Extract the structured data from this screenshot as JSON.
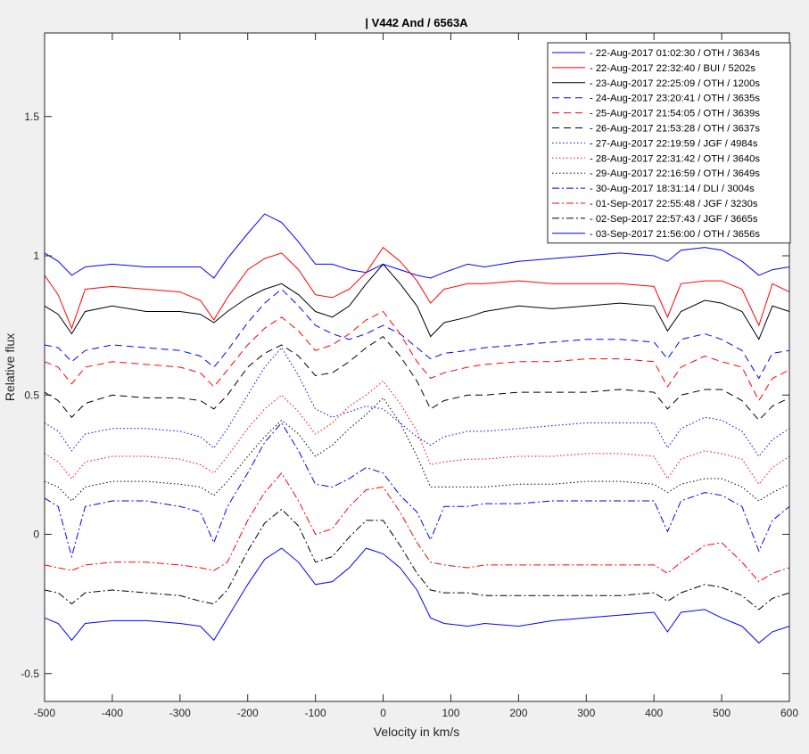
{
  "chart_data": {
    "type": "line",
    "title": "| V442 And / 6563A",
    "xlabel": "Velocity in km/s",
    "ylabel": "Relative flux",
    "xlim": [
      -500,
      600
    ],
    "ylim": [
      -0.6,
      1.8
    ],
    "xticks": [
      -500,
      -400,
      -300,
      -200,
      -100,
      0,
      100,
      200,
      300,
      400,
      500,
      600
    ],
    "yticks": [
      -0.5,
      0,
      0.5,
      1,
      1.5
    ],
    "ytick_labels": [
      "-0.5",
      "0",
      "0.5",
      "1",
      "1.5"
    ],
    "grid": false,
    "legend_placement": "top-right",
    "x": [
      -500,
      -480,
      -460,
      -440,
      -400,
      -350,
      -300,
      -270,
      -250,
      -230,
      -200,
      -175,
      -150,
      -125,
      -100,
      -75,
      -50,
      -25,
      0,
      25,
      50,
      70,
      90,
      125,
      150,
      200,
      250,
      300,
      350,
      400,
      420,
      440,
      475,
      500,
      530,
      555,
      575,
      600
    ],
    "series": [
      {
        "name": "- 22-Aug-2017 01:02:30 / OTH / 3634s",
        "color": "#0000ff",
        "style": "solid",
        "values": [
          1.01,
          0.98,
          0.93,
          0.96,
          0.97,
          0.96,
          0.96,
          0.96,
          0.92,
          0.99,
          1.08,
          1.15,
          1.12,
          1.05,
          0.97,
          0.97,
          0.95,
          0.94,
          0.97,
          0.95,
          0.93,
          0.92,
          0.94,
          0.97,
          0.96,
          0.98,
          0.99,
          1.0,
          1.01,
          1.0,
          0.98,
          1.02,
          1.03,
          1.02,
          0.98,
          0.93,
          0.95,
          0.96
        ]
      },
      {
        "name": "- 22-Aug-2017 22:32:40 / BUI / 5202s",
        "color": "#ff0000",
        "style": "solid",
        "values": [
          0.93,
          0.86,
          0.74,
          0.88,
          0.89,
          0.88,
          0.87,
          0.84,
          0.77,
          0.85,
          0.95,
          0.99,
          1.01,
          0.95,
          0.86,
          0.85,
          0.88,
          0.94,
          1.03,
          0.98,
          0.91,
          0.83,
          0.88,
          0.9,
          0.9,
          0.91,
          0.9,
          0.9,
          0.9,
          0.89,
          0.78,
          0.9,
          0.91,
          0.91,
          0.88,
          0.75,
          0.9,
          0.87
        ]
      },
      {
        "name": "- 23-Aug-2017 22:25:09 / OTH / 1200s",
        "color": "#000000",
        "style": "solid",
        "values": [
          0.82,
          0.79,
          0.72,
          0.8,
          0.82,
          0.8,
          0.8,
          0.79,
          0.76,
          0.8,
          0.85,
          0.88,
          0.9,
          0.86,
          0.8,
          0.78,
          0.82,
          0.9,
          0.97,
          0.9,
          0.82,
          0.71,
          0.76,
          0.78,
          0.8,
          0.82,
          0.81,
          0.82,
          0.83,
          0.82,
          0.73,
          0.8,
          0.84,
          0.83,
          0.8,
          0.7,
          0.82,
          0.8
        ]
      },
      {
        "name": "- 24-Aug-2017 23:20:41 / OTH / 3635s",
        "color": "#0000ff",
        "style": "dashed",
        "values": [
          0.68,
          0.67,
          0.62,
          0.66,
          0.68,
          0.67,
          0.66,
          0.64,
          0.6,
          0.66,
          0.76,
          0.83,
          0.88,
          0.82,
          0.75,
          0.72,
          0.7,
          0.72,
          0.75,
          0.72,
          0.67,
          0.63,
          0.65,
          0.66,
          0.67,
          0.68,
          0.69,
          0.7,
          0.7,
          0.69,
          0.63,
          0.7,
          0.72,
          0.7,
          0.66,
          0.56,
          0.65,
          0.66
        ]
      },
      {
        "name": "- 25-Aug-2017 21:54:05 / OTH / 3639s",
        "color": "#ff0000",
        "style": "dashed",
        "values": [
          0.62,
          0.6,
          0.54,
          0.6,
          0.62,
          0.61,
          0.6,
          0.58,
          0.53,
          0.59,
          0.68,
          0.74,
          0.78,
          0.73,
          0.66,
          0.68,
          0.72,
          0.77,
          0.8,
          0.72,
          0.62,
          0.56,
          0.58,
          0.6,
          0.61,
          0.62,
          0.62,
          0.63,
          0.63,
          0.62,
          0.53,
          0.6,
          0.64,
          0.62,
          0.6,
          0.48,
          0.56,
          0.59
        ]
      },
      {
        "name": "- 26-Aug-2017 21:53:28 / OTH / 3637s",
        "color": "#000000",
        "style": "dashed",
        "values": [
          0.51,
          0.48,
          0.42,
          0.47,
          0.5,
          0.49,
          0.49,
          0.48,
          0.45,
          0.5,
          0.6,
          0.65,
          0.68,
          0.64,
          0.57,
          0.58,
          0.62,
          0.67,
          0.71,
          0.64,
          0.55,
          0.45,
          0.48,
          0.5,
          0.5,
          0.51,
          0.51,
          0.51,
          0.52,
          0.51,
          0.45,
          0.5,
          0.52,
          0.52,
          0.48,
          0.41,
          0.46,
          0.49
        ]
      },
      {
        "name": "- 27-Aug-2017 22:19:59 / JGF / 4984s",
        "color": "#0000ff",
        "style": "dotted",
        "values": [
          0.4,
          0.37,
          0.3,
          0.36,
          0.38,
          0.38,
          0.37,
          0.35,
          0.31,
          0.38,
          0.5,
          0.6,
          0.67,
          0.57,
          0.45,
          0.42,
          0.44,
          0.46,
          0.45,
          0.4,
          0.35,
          0.32,
          0.35,
          0.37,
          0.37,
          0.38,
          0.39,
          0.4,
          0.4,
          0.4,
          0.31,
          0.38,
          0.42,
          0.41,
          0.37,
          0.28,
          0.34,
          0.38
        ]
      },
      {
        "name": "- 28-Aug-2017 22:31:42 / OTH / 3640s",
        "color": "#ff0000",
        "style": "dotted",
        "values": [
          0.29,
          0.26,
          0.2,
          0.26,
          0.28,
          0.28,
          0.27,
          0.25,
          0.22,
          0.28,
          0.38,
          0.45,
          0.5,
          0.44,
          0.36,
          0.4,
          0.46,
          0.5,
          0.55,
          0.47,
          0.37,
          0.25,
          0.26,
          0.27,
          0.27,
          0.28,
          0.28,
          0.29,
          0.29,
          0.28,
          0.2,
          0.27,
          0.3,
          0.29,
          0.27,
          0.18,
          0.24,
          0.28
        ]
      },
      {
        "name": "- 29-Aug-2017 22:16:59 / OTH / 3649s",
        "color": "#000000",
        "style": "dotted",
        "values": [
          0.19,
          0.17,
          0.12,
          0.17,
          0.19,
          0.19,
          0.18,
          0.17,
          0.14,
          0.19,
          0.28,
          0.35,
          0.41,
          0.36,
          0.28,
          0.32,
          0.38,
          0.43,
          0.49,
          0.4,
          0.28,
          0.17,
          0.17,
          0.17,
          0.17,
          0.18,
          0.18,
          0.19,
          0.19,
          0.18,
          0.15,
          0.18,
          0.2,
          0.2,
          0.17,
          0.12,
          0.15,
          0.18
        ]
      },
      {
        "name": "- 30-Aug-2017 18:31:14 / DLI / 3004s",
        "color": "#0000ff",
        "style": "dashdot",
        "values": [
          0.13,
          0.1,
          -0.08,
          0.1,
          0.12,
          0.12,
          0.1,
          0.08,
          -0.03,
          0.1,
          0.22,
          0.33,
          0.4,
          0.3,
          0.18,
          0.17,
          0.2,
          0.24,
          0.22,
          0.14,
          0.08,
          -0.02,
          0.1,
          0.1,
          0.11,
          0.11,
          0.12,
          0.12,
          0.12,
          0.12,
          0.01,
          0.12,
          0.15,
          0.14,
          0.1,
          -0.06,
          0.05,
          0.1
        ]
      },
      {
        "name": "- 01-Sep-2017 22:55:48 / JGF / 3230s",
        "color": "#ff0000",
        "style": "dashdot",
        "values": [
          -0.11,
          -0.12,
          -0.13,
          -0.11,
          -0.1,
          -0.1,
          -0.11,
          -0.12,
          -0.13,
          -0.1,
          0.05,
          0.15,
          0.22,
          0.12,
          0.0,
          0.02,
          0.1,
          0.16,
          0.17,
          0.08,
          -0.03,
          -0.1,
          -0.11,
          -0.12,
          -0.11,
          -0.11,
          -0.11,
          -0.11,
          -0.11,
          -0.11,
          -0.14,
          -0.1,
          -0.04,
          -0.03,
          -0.1,
          -0.17,
          -0.14,
          -0.12
        ]
      },
      {
        "name": "- 02-Sep-2017 22:57:43 / JGF / 3665s",
        "color": "#000000",
        "style": "dashdot",
        "values": [
          -0.2,
          -0.21,
          -0.25,
          -0.21,
          -0.2,
          -0.21,
          -0.22,
          -0.24,
          -0.25,
          -0.2,
          -0.06,
          0.04,
          0.09,
          0.03,
          -0.1,
          -0.08,
          -0.01,
          0.05,
          0.05,
          -0.04,
          -0.14,
          -0.2,
          -0.21,
          -0.21,
          -0.22,
          -0.22,
          -0.22,
          -0.22,
          -0.22,
          -0.21,
          -0.24,
          -0.21,
          -0.18,
          -0.19,
          -0.22,
          -0.27,
          -0.23,
          -0.21
        ]
      },
      {
        "name": "- 03-Sep-2017 21:56:00 / OTH / 3656s",
        "color": "#0000ff",
        "style": "solid",
        "values": [
          -0.3,
          -0.32,
          -0.38,
          -0.32,
          -0.31,
          -0.31,
          -0.32,
          -0.33,
          -0.38,
          -0.3,
          -0.18,
          -0.09,
          -0.05,
          -0.1,
          -0.18,
          -0.17,
          -0.12,
          -0.05,
          -0.07,
          -0.12,
          -0.2,
          -0.3,
          -0.32,
          -0.33,
          -0.32,
          -0.33,
          -0.31,
          -0.3,
          -0.29,
          -0.28,
          -0.35,
          -0.28,
          -0.27,
          -0.3,
          -0.33,
          -0.39,
          -0.35,
          -0.33
        ]
      }
    ]
  }
}
